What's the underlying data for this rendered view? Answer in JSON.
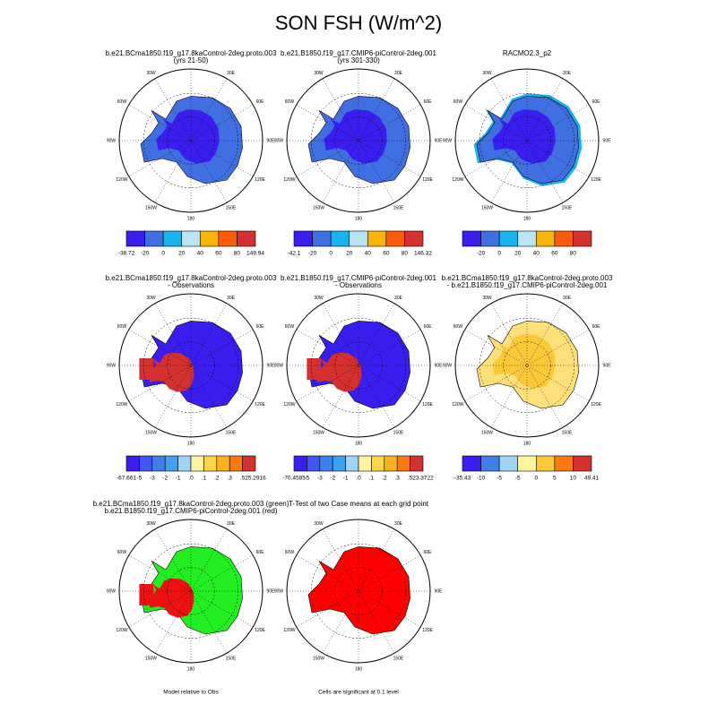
{
  "title": "SON FSH (W/m^2)",
  "longitude_labels": [
    "30E",
    "60E",
    "90E",
    "120E",
    "150E",
    "180",
    "150W",
    "120W",
    "90W",
    "60W",
    "30W"
  ],
  "panels": [
    {
      "titles": [
        "b.e21.BCma1850.f19_g17.8kaControl-2deg.proto.003",
        "(yrs 21-50)"
      ],
      "map": {
        "base": "#3f6fe0",
        "inner": "#3a1ef0"
      },
      "colorbar": {
        "colors": [
          "#3a1ef0",
          "#3f6fe0",
          "#19b2ee",
          "#b8e4f4",
          "#f9b40a",
          "#f95b0a",
          "#d43030"
        ],
        "labels": [
          "-38.72",
          "-20",
          "0",
          "20",
          "40",
          "60",
          "80",
          "149.94"
        ]
      }
    },
    {
      "titles": [
        "b.e21.B1850.f19_g17.CMIP6-piControl-2deg.001",
        "(yrs 301-330)"
      ],
      "map": {
        "base": "#3f6fe0",
        "inner": "#3a1ef0"
      },
      "colorbar": {
        "colors": [
          "#3a1ef0",
          "#3f6fe0",
          "#19b2ee",
          "#b8e4f4",
          "#f9b40a",
          "#f95b0a",
          "#d43030"
        ],
        "labels": [
          "-42.1",
          "-20",
          "0",
          "20",
          "40",
          "60",
          "80",
          "146.32"
        ]
      }
    },
    {
      "titles": [
        "RACMO2.3_p2"
      ],
      "map": {
        "base": "#3f6fe0",
        "inner": "#3a1ef0",
        "edge": "#19b2ee"
      },
      "colorbar": {
        "colors": [
          "#3a1ef0",
          "#3f6fe0",
          "#19b2ee",
          "#b8e4f4",
          "#f9b40a",
          "#f95b0a",
          "#d43030"
        ],
        "labels": [
          "-20",
          "0",
          "20",
          "40",
          "60",
          "80"
        ]
      }
    },
    {
      "titles": [
        "b.e21.BCma1850.f19_g17.8kaControl-2deg.proto.003",
        "- Observations"
      ],
      "map": {
        "base": "#3a1ef0",
        "west": "#d43030"
      },
      "colorbar": {
        "colors": [
          "#3a1ef0",
          "#3f56f0",
          "#3f7fe8",
          "#3fa0ec",
          "#9fd4f4",
          "#fff3a0",
          "#fdd44a",
          "#fbb020",
          "#f97a10",
          "#d43030"
        ],
        "labels": [
          "-67.661",
          "-5",
          "-3",
          "-2",
          "-1",
          ".0",
          ".1",
          ".2",
          ".3",
          ".5",
          "25.2916"
        ]
      }
    },
    {
      "titles": [
        "b.e21.B1850.f19_g17.CMIP6-piControl-2deg.001",
        "- Observations"
      ],
      "map": {
        "base": "#3a1ef0",
        "west": "#d43030"
      },
      "colorbar": {
        "colors": [
          "#3a1ef0",
          "#3f56f0",
          "#3f7fe8",
          "#3fa0ec",
          "#9fd4f4",
          "#fff3a0",
          "#fdd44a",
          "#fbb020",
          "#f97a10",
          "#d43030"
        ],
        "labels": [
          "-70.4585",
          "-5",
          "-3",
          "-2",
          "-1",
          ".0",
          ".1",
          ".2",
          ".3",
          ".5",
          "23.3722"
        ]
      }
    },
    {
      "titles": [
        "b.e21.BCma1850.f19_g17.8kaControl-2deg.proto.003",
        "- b.e21.B1850.f19_g17.CMIP6-piControl-2deg.001"
      ],
      "map": {
        "base": "#fde07a",
        "inner": "#fbc83a"
      },
      "colorbar": {
        "colors": [
          "#3a1ef0",
          "#3f7fe8",
          "#9fd4f4",
          "#fff3a0",
          "#fbc83a",
          "#f97a10",
          "#d43030"
        ],
        "labels": [
          "-35.43",
          "-10",
          "-5",
          "-5",
          "0",
          "5",
          "10",
          "49.41"
        ]
      }
    },
    {
      "titles": [
        "b.e21.BCma1850.f19_g17.8kaControl-2deg.proto.003 (green)",
        "b.e21.B1850.f19_g17.CMIP6-piControl-2deg.001 (red)"
      ],
      "map": {
        "base": "#22ee22",
        "west": "#ee1111"
      },
      "note": "Model relative to Obs"
    },
    {
      "titles": [
        "T-Test of two Case means at each grid point"
      ],
      "map": {
        "base": "#ff0000"
      },
      "note": "Cells are significant at 0.1 level"
    }
  ]
}
